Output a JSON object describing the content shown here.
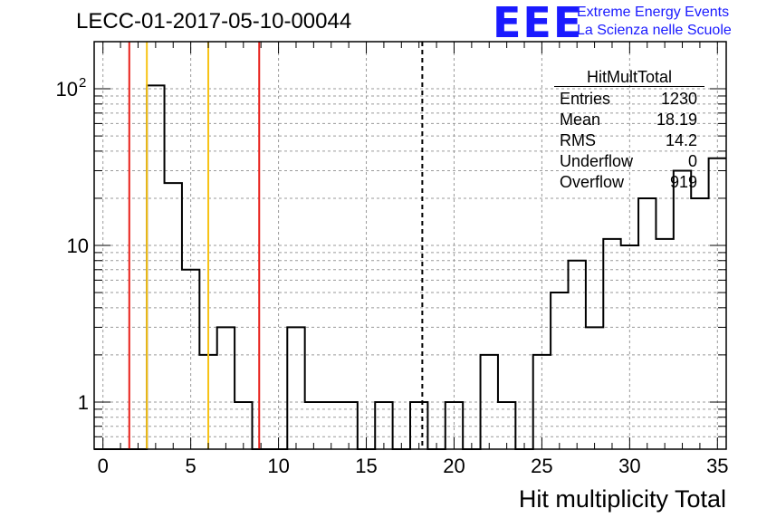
{
  "title": "LECC-01-2017-05-10-00044",
  "logo": {
    "mark": "EEE",
    "line1": "Extreme Energy Events",
    "line2": "La Scienza nelle Scuole",
    "color": "#1a1aff"
  },
  "stats_box": {
    "title": "HitMultTotal",
    "rows": [
      {
        "label": "Entries",
        "value": "1230"
      },
      {
        "label": "Mean",
        "value": "18.19"
      },
      {
        "label": "RMS",
        "value": "14.2"
      },
      {
        "label": "Underflow",
        "value": "0"
      },
      {
        "label": "Overflow",
        "value": "919"
      }
    ]
  },
  "chart_data": {
    "type": "histogram",
    "xlabel": "Hit multiplicity Total",
    "ylabel": "",
    "xlim": [
      -0.5,
      35.5
    ],
    "ylim": [
      0.5,
      200
    ],
    "y_scale": "log",
    "grid": true,
    "x_ticks": [
      0,
      5,
      10,
      15,
      20,
      25,
      30,
      35
    ],
    "y_ticks": [
      {
        "value": 1,
        "label": "1"
      },
      {
        "value": 10,
        "label": "10"
      },
      {
        "value": 100,
        "label": "10",
        "sup": "2"
      }
    ],
    "bins": {
      "low_edge": -0.5,
      "width": 1,
      "values": [
        0,
        0,
        0,
        105,
        25,
        7,
        2,
        3,
        1,
        0,
        0,
        3,
        1,
        1,
        1,
        0,
        1,
        0,
        1,
        0,
        1,
        0,
        2,
        1,
        0,
        2,
        5,
        8,
        3,
        11,
        10,
        20,
        11,
        30,
        20,
        36
      ]
    },
    "vertical_lines": [
      {
        "x": 1.5,
        "color": "#e8201a",
        "style": "solid"
      },
      {
        "x": 2.5,
        "color": "#f7c315",
        "style": "solid"
      },
      {
        "x": 6.0,
        "color": "#f7c315",
        "style": "solid"
      },
      {
        "x": 8.9,
        "color": "#e8201a",
        "style": "solid"
      },
      {
        "x": 18.19,
        "color": "#000000",
        "style": "dashed"
      }
    ],
    "line_color": "#000000"
  }
}
